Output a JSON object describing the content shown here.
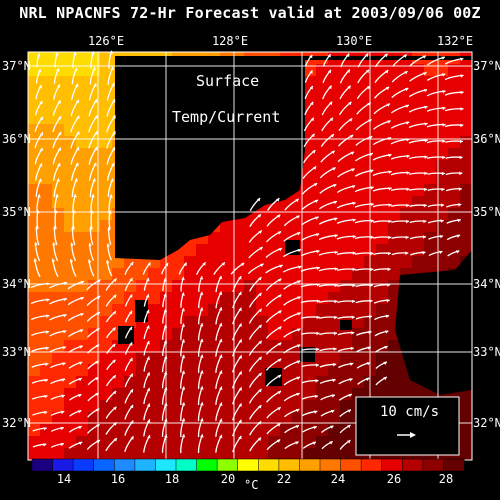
{
  "title": "NRL NPACNFS 72-Hr Forecast valid at 2003/09/06 00Z",
  "overlay": {
    "line1": "Surface",
    "line2": "Temp/Current"
  },
  "axes": {
    "lon_labels": [
      "126°E",
      "128°E",
      "130°E",
      "132°E"
    ],
    "lat_labels": [
      "37°N",
      "36°N",
      "35°N",
      "34°N",
      "33°N",
      "32°N"
    ]
  },
  "legend_box": {
    "label": "10 cm/s"
  },
  "colorbar": {
    "labels": [
      "14",
      "16",
      "18",
      "20",
      "22",
      "24",
      "26",
      "28"
    ],
    "unit": "°C",
    "colors": [
      "#1a0080",
      "#1a1ae6",
      "#0a3cff",
      "#0a64ff",
      "#1e8cff",
      "#1eb4ff",
      "#1ee6ff",
      "#00ffc8",
      "#00ff00",
      "#8cff00",
      "#ffff00",
      "#ffdc00",
      "#ffbe00",
      "#ffa000",
      "#ff7800",
      "#ff5000",
      "#ff2800",
      "#e60000",
      "#b40000",
      "#8c0000",
      "#640000"
    ]
  },
  "map": {
    "projection_bounds": {
      "lon_min": 125.0,
      "lon_max": 132.2,
      "lat_min": 31.6,
      "lat_max": 37.2
    },
    "land_color": "#000000",
    "sst_range_c": [
      13,
      29
    ]
  }
}
